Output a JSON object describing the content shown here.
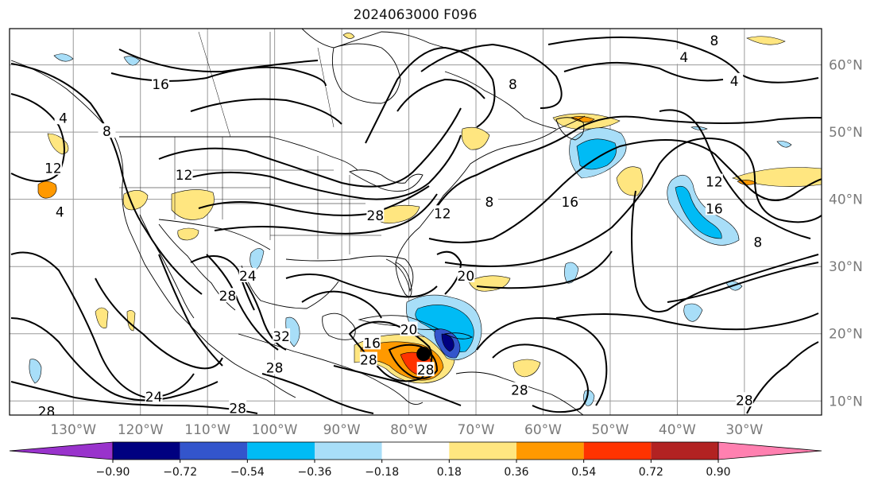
{
  "title": "2024063000 F096",
  "map": {
    "lat_labels": [
      "60°N",
      "50°N",
      "40°N",
      "30°N",
      "20°N",
      "10°N"
    ],
    "lat_values": [
      60,
      50,
      40,
      30,
      20,
      10
    ],
    "lon_labels": [
      "130°W",
      "120°W",
      "110°W",
      "100°W",
      "90°W",
      "80°W",
      "70°W",
      "60°W",
      "50°W",
      "40°W",
      "30°W"
    ],
    "lon_values": [
      -130,
      -120,
      -110,
      -100,
      -90,
      -80,
      -70,
      -60,
      -50,
      -40,
      -30
    ],
    "contour_labels": [
      {
        "text": "16",
        "lon": -117,
        "lat": 57
      },
      {
        "text": "4",
        "lon": -131.5,
        "lat": 52
      },
      {
        "text": "12",
        "lon": -133,
        "lat": 44.5
      },
      {
        "text": "4",
        "lon": -132,
        "lat": 38
      },
      {
        "text": "8",
        "lon": -125,
        "lat": 50
      },
      {
        "text": "12",
        "lon": -113.5,
        "lat": 43.5
      },
      {
        "text": "8",
        "lon": -64.5,
        "lat": 57
      },
      {
        "text": "4",
        "lon": -39,
        "lat": 61
      },
      {
        "text": "4",
        "lon": -31.5,
        "lat": 57.5
      },
      {
        "text": "8",
        "lon": -34.5,
        "lat": 63.5
      },
      {
        "text": "12",
        "lon": -75,
        "lat": 37.8
      },
      {
        "text": "8",
        "lon": -68,
        "lat": 39.5
      },
      {
        "text": "16",
        "lon": -56,
        "lat": 39.5
      },
      {
        "text": "12",
        "lon": -34.5,
        "lat": 42.5
      },
      {
        "text": "16",
        "lon": -34.5,
        "lat": 38.5
      },
      {
        "text": "8",
        "lon": -28,
        "lat": 33.5
      },
      {
        "text": "20",
        "lon": -71.5,
        "lat": 28.5
      },
      {
        "text": "28",
        "lon": -85,
        "lat": 37.5
      },
      {
        "text": "24",
        "lon": -104,
        "lat": 28.5
      },
      {
        "text": "28",
        "lon": -107,
        "lat": 25.5
      },
      {
        "text": "32",
        "lon": -99,
        "lat": 19.5
      },
      {
        "text": "28",
        "lon": -100,
        "lat": 14.8
      },
      {
        "text": "24",
        "lon": -118,
        "lat": 10.5
      },
      {
        "text": "28",
        "lon": -105.5,
        "lat": 8.8
      },
      {
        "text": "28",
        "lon": -134,
        "lat": 8.3
      },
      {
        "text": "16",
        "lon": -85.5,
        "lat": 18.5
      },
      {
        "text": "28",
        "lon": -86,
        "lat": 16
      },
      {
        "text": "28",
        "lon": -77.5,
        "lat": 14.5
      },
      {
        "text": "20",
        "lon": -80,
        "lat": 20.5
      },
      {
        "text": "28",
        "lon": -63.5,
        "lat": 11.5
      },
      {
        "text": "28",
        "lon": -30,
        "lat": 10
      }
    ],
    "storm_marker": {
      "lon": -77.8,
      "lat": 17.0
    }
  },
  "colorbar": {
    "colors": [
      "#9933cc",
      "#000080",
      "#3355cc",
      "#00bbf5",
      "#a8def8",
      "#ffffff",
      "#ffe680",
      "#ff9900",
      "#ff3300",
      "#b22222",
      "#ff80b0"
    ],
    "tick_labels": [
      "−0.90",
      "−0.72",
      "−0.54",
      "−0.36",
      "−0.18",
      "0.18",
      "0.36",
      "0.54",
      "0.72",
      "0.90"
    ]
  }
}
